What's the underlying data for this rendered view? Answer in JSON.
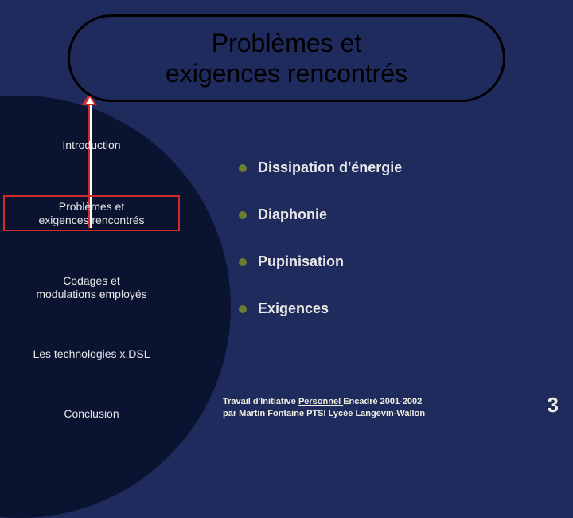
{
  "title": "Problèmes et\nexigences rencontrés",
  "nav": {
    "items": [
      {
        "label": "Introduction"
      },
      {
        "label": "Problèmes et\nexigences rencontrés"
      },
      {
        "label": "Codages et\nmodulations employés"
      },
      {
        "label": "Les technologies x.DSL"
      },
      {
        "label": "Conclusion"
      }
    ]
  },
  "bullets": [
    "Dissipation d'énergie",
    "Diaphonie",
    "Pupinisation",
    "Exigences"
  ],
  "footer": {
    "line1_a": "Travail d'Initiative ",
    "line1_b": "Personnel ",
    "line1_c": "Encadré 2001-2002",
    "line2": "par Martin Fontaine PTSI Lycée Langevin-Wallon"
  },
  "page_number": "3"
}
